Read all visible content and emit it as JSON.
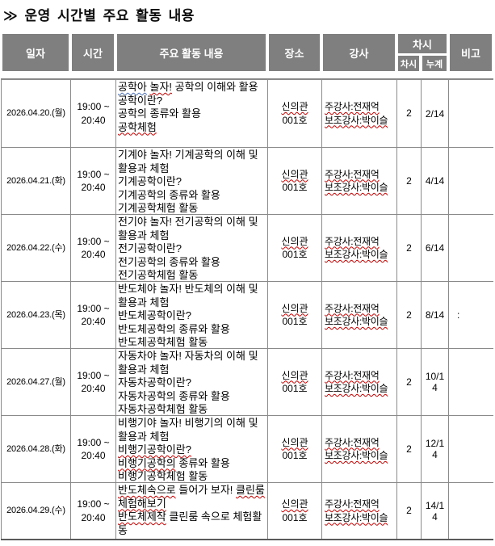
{
  "title": "≫ 운영 시간별 주요 활동 내용",
  "colors": {
    "header_bg": "#7f7f7f",
    "header_text": "#ffffff",
    "body_text": "#000000",
    "grid_line": "#8a8a8a",
    "outer_border": "#5a5a5a",
    "spell_red": "#c00000",
    "spell_blue": "#4a6fb5"
  },
  "table": {
    "headers": {
      "date": "일자",
      "time": "시간",
      "content": "주요 활동 내용",
      "place": "장소",
      "instructor": "강사",
      "session_group": "차시",
      "session": "차시",
      "cumulative": "누계",
      "note": "비고"
    },
    "rows": [
      {
        "date": "2026.04.20.(월)",
        "time": [
          "19:00 ~",
          "20:40"
        ],
        "content": [
          [
            {
              "t": "공학아",
              "u": "b"
            },
            {
              "t": " ",
              "u": ""
            },
            {
              "t": "놀자!",
              "u": "r"
            },
            {
              "t": " 공학의 이해와 활용",
              "u": ""
            }
          ],
          [
            {
              "t": "공학이란?",
              "u": ""
            }
          ],
          [
            {
              "t": "공학의 종류와 활용",
              "u": ""
            }
          ],
          [
            {
              "t": "공학체험",
              "u": "r"
            }
          ]
        ],
        "place": [
          [
            {
              "t": "신의관",
              "u": "r"
            }
          ],
          [
            {
              "t": "001호",
              "u": ""
            }
          ]
        ],
        "instructor": [
          [
            {
              "t": "주강사:전재억",
              "u": "r"
            }
          ],
          [
            {
              "t": "보조강사:박이슬",
              "u": "r"
            }
          ]
        ],
        "session": "2",
        "cumulative": "2/14",
        "note": ""
      },
      {
        "date": "2026.04.21.(화)",
        "time": [
          "19:00 ~",
          "20:40"
        ],
        "content": [
          [
            {
              "t": "기계야 놀자! 기계공학의 이해 및 활용과 체험",
              "u": ""
            }
          ],
          [
            {
              "t": "기계공학이란?",
              "u": ""
            }
          ],
          [
            {
              "t": "기계공학의 종류와 활용",
              "u": ""
            }
          ],
          [
            {
              "t": "기계공학체험",
              "u": "r"
            },
            {
              "t": " 활동",
              "u": ""
            }
          ]
        ],
        "place": [
          [
            {
              "t": "신의관",
              "u": "r"
            }
          ],
          [
            {
              "t": "001호",
              "u": ""
            }
          ]
        ],
        "instructor": [
          [
            {
              "t": "주강사:전재억",
              "u": "r"
            }
          ],
          [
            {
              "t": "보조강사:박이슬",
              "u": "r"
            }
          ]
        ],
        "session": "2",
        "cumulative": "4/14",
        "note": ""
      },
      {
        "date": "2026.04.22.(수)",
        "time": [
          "19:00 ~",
          "20:40"
        ],
        "content": [
          [
            {
              "t": "전기야 놀자! 전기공학의 이해 및 활용과 체험",
              "u": ""
            }
          ],
          [
            {
              "t": "전기공학이란?",
              "u": ""
            }
          ],
          [
            {
              "t": "전기공학의 종류와 활용",
              "u": ""
            }
          ],
          [
            {
              "t": "전기공학체험",
              "u": "r"
            },
            {
              "t": " 활동",
              "u": ""
            }
          ]
        ],
        "place": [
          [
            {
              "t": "신의관",
              "u": "r"
            }
          ],
          [
            {
              "t": "001호",
              "u": ""
            }
          ]
        ],
        "instructor": [
          [
            {
              "t": "주강사:전재억",
              "u": "r"
            }
          ],
          [
            {
              "t": "보조강사:박이슬",
              "u": "r"
            }
          ]
        ],
        "session": "2",
        "cumulative": "6/14",
        "note": ""
      },
      {
        "date": "2026.04.23.(목)",
        "time": [
          "19:00 ~",
          "20:40"
        ],
        "content": [
          [
            {
              "t": "반도체야 놀자! 반도체의 이해 및 활용과 체험",
              "u": ""
            }
          ],
          [
            {
              "t": "반도체공학이란?",
              "u": ""
            }
          ],
          [
            {
              "t": "반도체공학의 종류와 활용",
              "u": ""
            }
          ],
          [
            {
              "t": "반도체공학체험",
              "u": "r"
            },
            {
              "t": " 활동",
              "u": ""
            }
          ]
        ],
        "place": [
          [
            {
              "t": "신의관",
              "u": "r"
            }
          ],
          [
            {
              "t": "001호",
              "u": ""
            }
          ]
        ],
        "instructor": [
          [
            {
              "t": "주강사:전재억",
              "u": "r"
            }
          ],
          [
            {
              "t": "보조강사:박이슬",
              "u": "r"
            }
          ]
        ],
        "session": "2",
        "cumulative": "8/14",
        "note": ":"
      },
      {
        "date": "2026.04.27.(월)",
        "time": [
          "19:00 ~",
          "20:40"
        ],
        "content": [
          [
            {
              "t": "자동차야 놀자! 자동차의 이해 및 활용과 체험",
              "u": ""
            }
          ],
          [
            {
              "t": "자동차공학이란?",
              "u": ""
            }
          ],
          [
            {
              "t": "자동차공학의 종류와 활용",
              "u": ""
            }
          ],
          [
            {
              "t": "자동차공학체험",
              "u": "r"
            },
            {
              "t": " 활동",
              "u": ""
            }
          ]
        ],
        "place": [
          [
            {
              "t": "신의관",
              "u": "r"
            }
          ],
          [
            {
              "t": "001호",
              "u": ""
            }
          ]
        ],
        "instructor": [
          [
            {
              "t": "주강사:전재억",
              "u": "r"
            }
          ],
          [
            {
              "t": "보조강사:박이슬",
              "u": "r"
            }
          ]
        ],
        "session": "2",
        "cumulative": "10/14",
        "note": ""
      },
      {
        "date": "2026.04.28.(화)",
        "time": [
          "19:00 ~",
          "20:40"
        ],
        "content": [
          [
            {
              "t": "비행기야 놀자! 비행기의 이해 및 활용과 체험",
              "u": ""
            }
          ],
          [
            {
              "t": "비행기공학이란?",
              "u": "r"
            }
          ],
          [
            {
              "t": "비행기공학의",
              "u": "r"
            },
            {
              "t": " 종류와 활용",
              "u": ""
            }
          ],
          [
            {
              "t": "비행기공학체험",
              "u": "r"
            },
            {
              "t": " 활동",
              "u": ""
            }
          ]
        ],
        "place": [
          [
            {
              "t": "신의관",
              "u": "r"
            }
          ],
          [
            {
              "t": "001호",
              "u": ""
            }
          ]
        ],
        "instructor": [
          [
            {
              "t": "주강사:전재억",
              "u": "r"
            }
          ],
          [
            {
              "t": "보조강사:박이슬",
              "u": "r"
            }
          ]
        ],
        "session": "2",
        "cumulative": "12/14",
        "note": ""
      },
      {
        "date": "2026.04.29.(수)",
        "time": [
          "19:00 ~",
          "20:40"
        ],
        "content": [
          [
            {
              "t": "반도체속으로",
              "u": "r"
            },
            {
              "t": " 들어가 보자! ",
              "u": ""
            },
            {
              "t": "클린룸 체험해보기",
              "u": "r"
            }
          ],
          [
            {
              "t": "반도체제작",
              "u": "r"
            },
            {
              "t": " 클린룸 속으로 체험활동",
              "u": ""
            }
          ]
        ],
        "place": [
          [
            {
              "t": "신의관",
              "u": "r"
            }
          ],
          [
            {
              "t": "001호",
              "u": ""
            }
          ]
        ],
        "instructor": [
          [
            {
              "t": "주강사:전재억",
              "u": "r"
            }
          ],
          [
            {
              "t": "보조강사:박이슬",
              "u": "r"
            }
          ]
        ],
        "session": "2",
        "cumulative": "14/14",
        "note": ""
      }
    ]
  }
}
